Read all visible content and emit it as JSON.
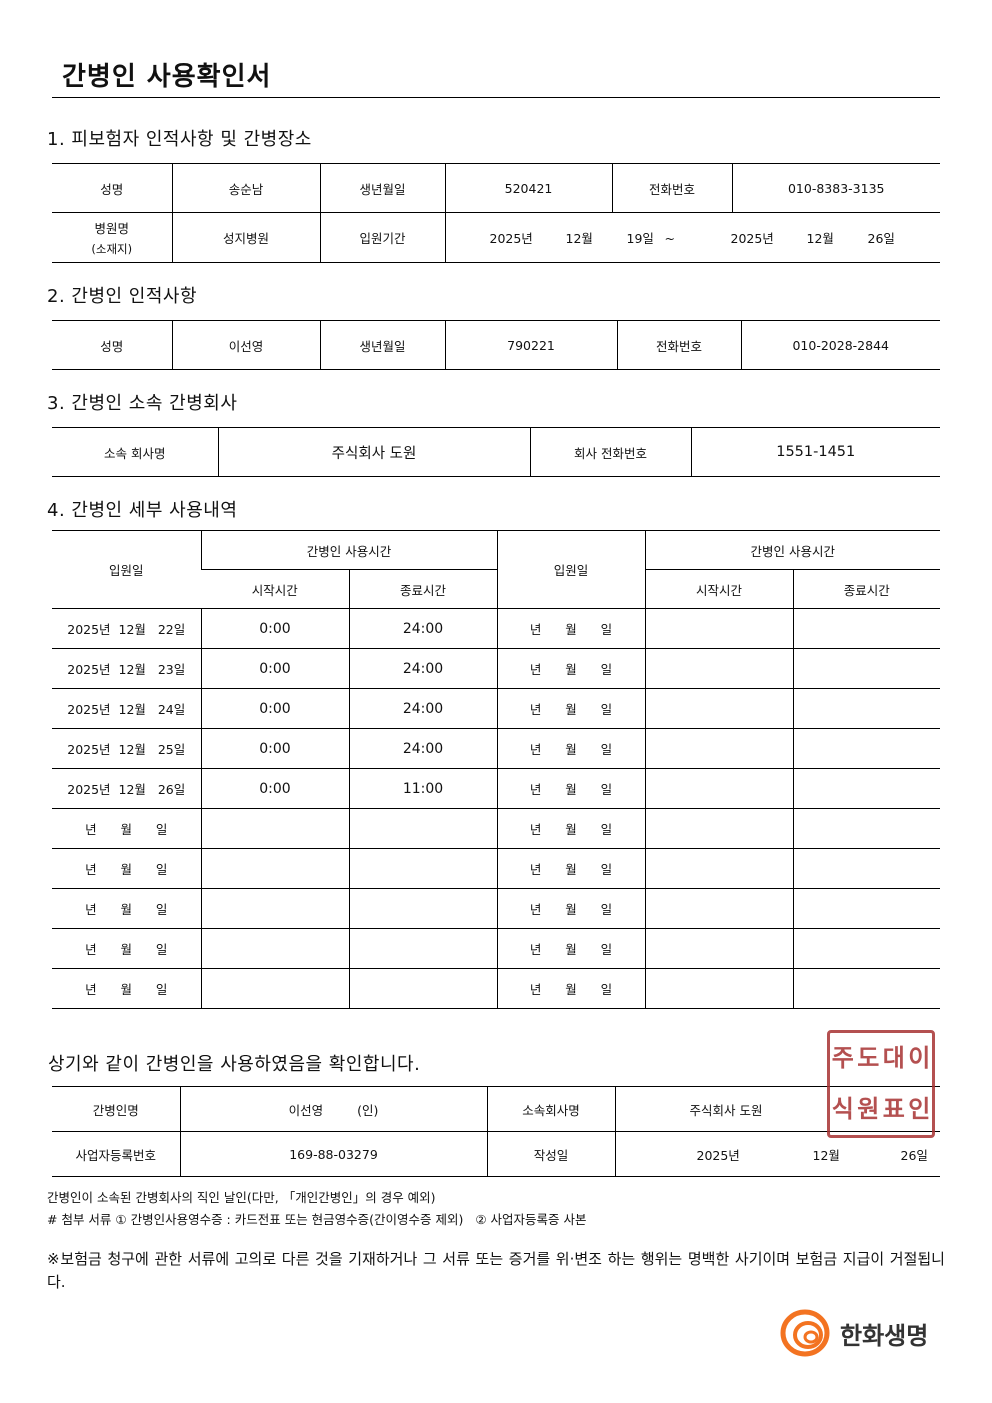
{
  "title": "간병인 사용확인서",
  "section1": {
    "heading": "1. 피보험자 인적사항 및 간병장소",
    "name_label": "성명",
    "name": "송순남",
    "birth_label": "생년월일",
    "birth": "520421",
    "phone_label": "전화번호",
    "phone": "010-8383-3135",
    "hospital_label": "병원명",
    "hospital_label2": "(소재지)",
    "hospital": "성지병원",
    "period_label": "입원기간",
    "period": {
      "from_year": "2025년",
      "from_month": "12월",
      "from_day": "19일",
      "tilde": "~",
      "to_year": "2025년",
      "to_month": "12월",
      "to_day": "26일"
    }
  },
  "section2": {
    "heading": "2. 간병인 인적사항",
    "name_label": "성명",
    "name": "이선영",
    "birth_label": "생년월일",
    "birth": "790221",
    "phone_label": "전화번호",
    "phone": "010-2028-2844"
  },
  "section3": {
    "heading": "3. 간병인 소속 간병회사",
    "company_label": "소속 회사명",
    "company": "주식회사 도원",
    "phone_label": "회사 전화번호",
    "phone": "1551-1451"
  },
  "section4": {
    "heading": "4. 간병인 세부 사용내역",
    "col_date": "입원일",
    "col_usage": "간병인 사용시간",
    "col_start": "시작시간",
    "col_end": "종료시간",
    "rows_left": [
      {
        "date": "2025년  12월   22일",
        "start": "0:00",
        "end": "24:00"
      },
      {
        "date": "2025년  12월   23일",
        "start": "0:00",
        "end": "24:00"
      },
      {
        "date": "2025년  12월   24일",
        "start": "0:00",
        "end": "24:00"
      },
      {
        "date": "2025년  12월   25일",
        "start": "0:00",
        "end": "24:00"
      },
      {
        "date": "2025년  12월   26일",
        "start": "0:00",
        "end": "11:00"
      },
      {
        "date": "년      월      일",
        "start": "",
        "end": ""
      },
      {
        "date": "년      월      일",
        "start": "",
        "end": ""
      },
      {
        "date": "년      월      일",
        "start": "",
        "end": ""
      },
      {
        "date": "년      월      일",
        "start": "",
        "end": ""
      },
      {
        "date": "년      월      일",
        "start": "",
        "end": ""
      }
    ],
    "blank_date": "년      월      일"
  },
  "confirm": {
    "text": "상기와 같이 간병인을 사용하였음을 확인합니다.",
    "caregiver_label": "간병인명",
    "caregiver": "이선영",
    "seal_mark": "(인)",
    "company_label": "소속회사명",
    "company": "주식회사 도원",
    "bizno_label": "사업자등록번호",
    "bizno": "169-88-03279",
    "date_label": "작성일",
    "year": "2025년",
    "month": "12월",
    "day": "26일",
    "stamp_text": "주식회사도원대표이사인"
  },
  "notes": {
    "note1": "간병인이 소속된 간병회사의 직인 날인(다만, 「개인간병인」의 경우 예외)",
    "note2": "# 첨부 서류 ① 간병인사용영수증 : 카드전표 또는 현금영수증(간이영수증 제외)   ② 사업자등록증 사본",
    "warning": "※보험금 청구에 관한 서류에 고의로 다른 것을 기재하거나 그 서류 또는 증거를 위·변조 하는 행위는 명백한 사기이며 보험금 지급이 거절됩니다."
  },
  "logo": {
    "text": "한화생명",
    "color": "#f37321"
  }
}
